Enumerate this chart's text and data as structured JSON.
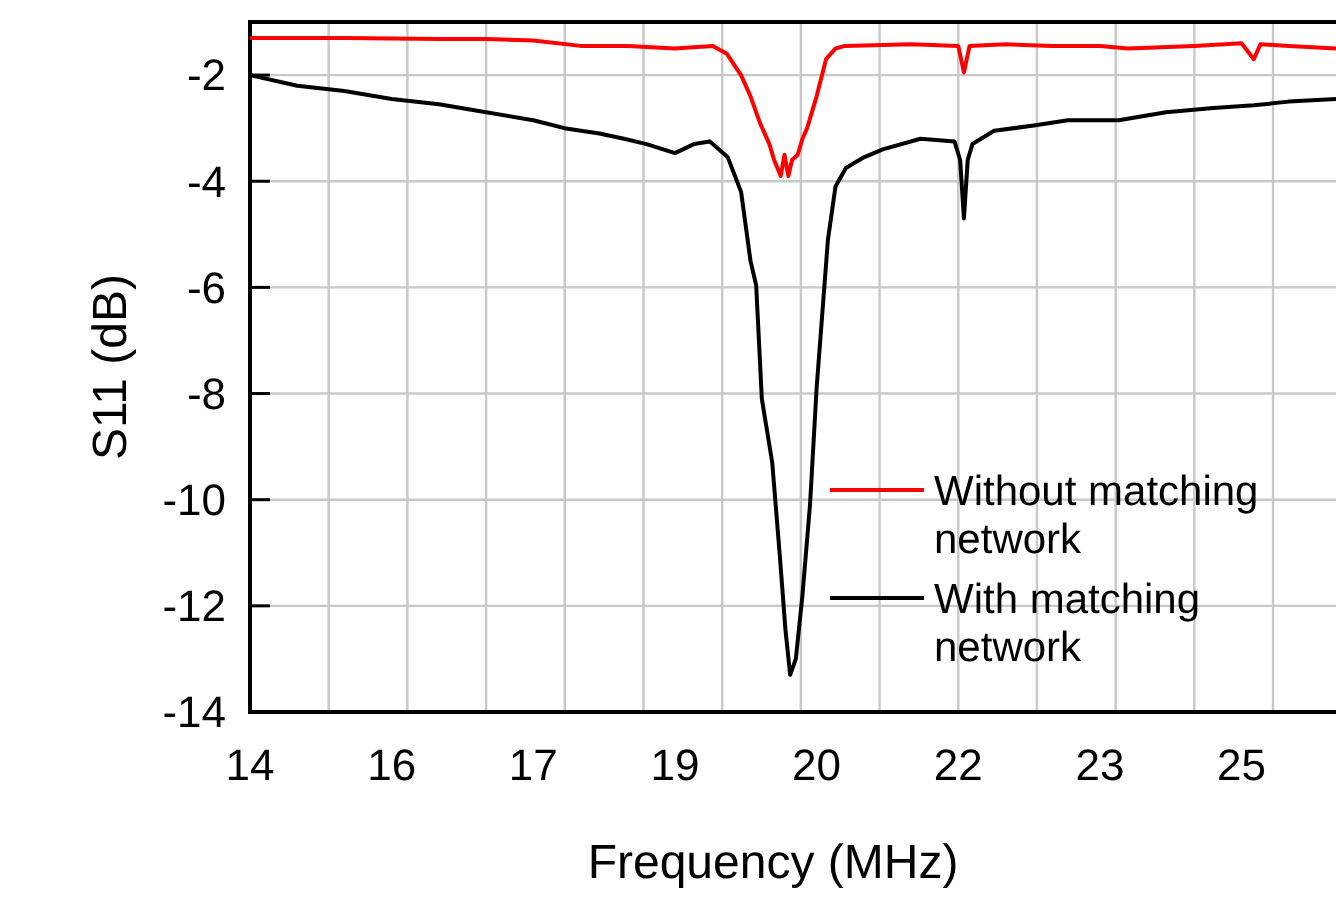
{
  "chart_data": {
    "type": "line",
    "xlabel": "Frequency (MHz)",
    "ylabel": "S11 (dB)",
    "xlim": [
      14,
      25.5
    ],
    "ylim": [
      -14,
      -1
    ],
    "xticks": [
      {
        "value": 14,
        "label": "14"
      },
      {
        "value": 15.5,
        "label": "16"
      },
      {
        "value": 17,
        "label": "17"
      },
      {
        "value": 18.5,
        "label": "19"
      },
      {
        "value": 20,
        "label": "20"
      },
      {
        "value": 21.5,
        "label": "22"
      },
      {
        "value": 23,
        "label": "23"
      },
      {
        "value": 24.5,
        "label": "25"
      },
      {
        "value": 14.833,
        "label": null
      },
      {
        "value": 15.667,
        "label": null
      },
      {
        "value": 16.5,
        "label": null
      },
      {
        "value": 17.333,
        "label": null
      },
      {
        "value": 18.167,
        "label": null
      },
      {
        "value": 19,
        "label": null
      },
      {
        "value": 19.833,
        "label": null
      },
      {
        "value": 20.667,
        "label": null
      },
      {
        "value": 21.5,
        "label": null
      },
      {
        "value": 22.333,
        "label": null
      },
      {
        "value": 23.167,
        "label": null
      },
      {
        "value": 24,
        "label": null
      },
      {
        "value": 24.833,
        "label": null
      }
    ],
    "yticks": [
      -2,
      -4,
      -6,
      -8,
      -10,
      -12,
      -14
    ],
    "grid": true,
    "legend": "right",
    "marker": "none",
    "line_style": "solid",
    "series": [
      {
        "name": "Without matching network",
        "color": "#ff0000",
        "x": [
          14,
          15,
          16,
          16.5,
          17,
          17.5,
          18,
          18.5,
          18.9,
          19.05,
          19.2,
          19.3,
          19.4,
          19.5,
          19.55,
          19.62,
          19.66,
          19.7,
          19.74,
          19.8,
          19.85,
          19.9,
          20,
          20.1,
          20.2,
          20.3,
          21,
          21.5,
          21.56,
          21.62,
          22,
          22.5,
          23,
          23.3,
          24,
          24.5,
          24.63,
          24.7,
          25,
          25.5
        ],
        "values": [
          -1.3,
          -1.3,
          -1.32,
          -1.32,
          -1.35,
          -1.45,
          -1.45,
          -1.5,
          -1.45,
          -1.6,
          -2.0,
          -2.4,
          -2.9,
          -3.3,
          -3.6,
          -3.9,
          -3.5,
          -3.9,
          -3.6,
          -3.5,
          -3.2,
          -3.0,
          -2.4,
          -1.7,
          -1.5,
          -1.45,
          -1.42,
          -1.45,
          -1.95,
          -1.45,
          -1.42,
          -1.45,
          -1.45,
          -1.5,
          -1.45,
          -1.4,
          -1.7,
          -1.42,
          -1.45,
          -1.5
        ]
      },
      {
        "name": "With matching network",
        "color": "#000000",
        "x": [
          14,
          14.5,
          15,
          15.5,
          16,
          16.5,
          17,
          17.33,
          17.7,
          17.96,
          18.2,
          18.5,
          18.7,
          18.87,
          19.06,
          19.2,
          19.3,
          19.36,
          19.42,
          19.53,
          19.61,
          19.67,
          19.72,
          19.78,
          19.85,
          19.93,
          20,
          20.06,
          20.12,
          20.2,
          20.31,
          20.5,
          20.7,
          21.1,
          21.46,
          21.52,
          21.56,
          21.6,
          21.65,
          21.88,
          22.3,
          22.66,
          23.2,
          23.7,
          24.2,
          24.63,
          25,
          25.5
        ],
        "values": [
          -2.0,
          -2.2,
          -2.3,
          -2.45,
          -2.55,
          -2.7,
          -2.85,
          -3.0,
          -3.1,
          -3.2,
          -3.3,
          -3.47,
          -3.3,
          -3.25,
          -3.55,
          -4.2,
          -5.5,
          -5.96,
          -8.1,
          -9.3,
          -11.05,
          -12.45,
          -13.3,
          -13.0,
          -11.8,
          -10.1,
          -7.9,
          -6.5,
          -5.1,
          -4.1,
          -3.75,
          -3.55,
          -3.4,
          -3.2,
          -3.25,
          -3.6,
          -4.7,
          -3.6,
          -3.3,
          -3.05,
          -2.95,
          -2.85,
          -2.85,
          -2.7,
          -2.62,
          -2.57,
          -2.5,
          -2.45
        ]
      }
    ]
  }
}
